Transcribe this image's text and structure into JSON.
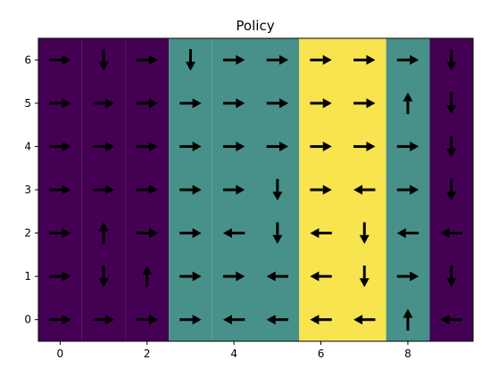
{
  "chart_data": {
    "type": "heatmap",
    "title": "Policy",
    "xlabel": "",
    "ylabel": "",
    "xlim": [
      -0.5,
      9.5
    ],
    "ylim": [
      -0.5,
      6.5
    ],
    "x_ticks": [
      0,
      2,
      4,
      6,
      8
    ],
    "y_ticks": [
      0,
      1,
      2,
      3,
      4,
      5,
      6
    ],
    "grid": false,
    "colormap": "viridis",
    "column_values": [
      0,
      0,
      0,
      1,
      1,
      1,
      2,
      2,
      1,
      0
    ],
    "colors": {
      "0": "#440154",
      "1": "#47918a",
      "2": "#f8e44f"
    },
    "arrows": [
      {
        "x": 0,
        "y": 6,
        "dir": "right"
      },
      {
        "x": 1,
        "y": 6,
        "dir": "down"
      },
      {
        "x": 2,
        "y": 6,
        "dir": "right"
      },
      {
        "x": 3,
        "y": 6,
        "dir": "down"
      },
      {
        "x": 4,
        "y": 6,
        "dir": "right"
      },
      {
        "x": 5,
        "y": 6,
        "dir": "right"
      },
      {
        "x": 6,
        "y": 6,
        "dir": "right"
      },
      {
        "x": 7,
        "y": 6,
        "dir": "right"
      },
      {
        "x": 8,
        "y": 6,
        "dir": "right"
      },
      {
        "x": 9,
        "y": 6,
        "dir": "down"
      },
      {
        "x": 0,
        "y": 5,
        "dir": "right"
      },
      {
        "x": 1,
        "y": 5,
        "dir": "right"
      },
      {
        "x": 2,
        "y": 5,
        "dir": "right"
      },
      {
        "x": 3,
        "y": 5,
        "dir": "right"
      },
      {
        "x": 4,
        "y": 5,
        "dir": "right"
      },
      {
        "x": 5,
        "y": 5,
        "dir": "right"
      },
      {
        "x": 6,
        "y": 5,
        "dir": "right"
      },
      {
        "x": 7,
        "y": 5,
        "dir": "right"
      },
      {
        "x": 8,
        "y": 5,
        "dir": "up"
      },
      {
        "x": 9,
        "y": 5,
        "dir": "down"
      },
      {
        "x": 0,
        "y": 4,
        "dir": "right"
      },
      {
        "x": 1,
        "y": 4,
        "dir": "right"
      },
      {
        "x": 2,
        "y": 4,
        "dir": "right"
      },
      {
        "x": 3,
        "y": 4,
        "dir": "right"
      },
      {
        "x": 4,
        "y": 4,
        "dir": "right"
      },
      {
        "x": 5,
        "y": 4,
        "dir": "right"
      },
      {
        "x": 6,
        "y": 4,
        "dir": "right"
      },
      {
        "x": 7,
        "y": 4,
        "dir": "right"
      },
      {
        "x": 8,
        "y": 4,
        "dir": "right"
      },
      {
        "x": 9,
        "y": 4,
        "dir": "down"
      },
      {
        "x": 0,
        "y": 3,
        "dir": "right"
      },
      {
        "x": 1,
        "y": 3,
        "dir": "right"
      },
      {
        "x": 2,
        "y": 3,
        "dir": "right"
      },
      {
        "x": 3,
        "y": 3,
        "dir": "right"
      },
      {
        "x": 4,
        "y": 3,
        "dir": "right"
      },
      {
        "x": 5,
        "y": 3,
        "dir": "down"
      },
      {
        "x": 6,
        "y": 3,
        "dir": "right"
      },
      {
        "x": 7,
        "y": 3,
        "dir": "left"
      },
      {
        "x": 8,
        "y": 3,
        "dir": "right"
      },
      {
        "x": 9,
        "y": 3,
        "dir": "down"
      },
      {
        "x": 0,
        "y": 2,
        "dir": "right"
      },
      {
        "x": 1,
        "y": 2,
        "dir": "up"
      },
      {
        "x": 2,
        "y": 2,
        "dir": "right"
      },
      {
        "x": 3,
        "y": 2,
        "dir": "right"
      },
      {
        "x": 4,
        "y": 2,
        "dir": "left"
      },
      {
        "x": 5,
        "y": 2,
        "dir": "down"
      },
      {
        "x": 6,
        "y": 2,
        "dir": "left"
      },
      {
        "x": 7,
        "y": 2,
        "dir": "down"
      },
      {
        "x": 8,
        "y": 2,
        "dir": "left"
      },
      {
        "x": 9,
        "y": 2,
        "dir": "left"
      },
      {
        "x": 0,
        "y": 1,
        "dir": "right"
      },
      {
        "x": 1,
        "y": 1,
        "dir": "down"
      },
      {
        "x": 2,
        "y": 1,
        "dir": "up"
      },
      {
        "x": 3,
        "y": 1,
        "dir": "right"
      },
      {
        "x": 4,
        "y": 1,
        "dir": "right"
      },
      {
        "x": 5,
        "y": 1,
        "dir": "left"
      },
      {
        "x": 6,
        "y": 1,
        "dir": "left"
      },
      {
        "x": 7,
        "y": 1,
        "dir": "down"
      },
      {
        "x": 8,
        "y": 1,
        "dir": "right"
      },
      {
        "x": 9,
        "y": 1,
        "dir": "down"
      },
      {
        "x": 0,
        "y": 0,
        "dir": "right"
      },
      {
        "x": 1,
        "y": 0,
        "dir": "right"
      },
      {
        "x": 2,
        "y": 0,
        "dir": "right"
      },
      {
        "x": 3,
        "y": 0,
        "dir": "right"
      },
      {
        "x": 4,
        "y": 0,
        "dir": "left"
      },
      {
        "x": 5,
        "y": 0,
        "dir": "left"
      },
      {
        "x": 6,
        "y": 0,
        "dir": "left"
      },
      {
        "x": 7,
        "y": 0,
        "dir": "left"
      },
      {
        "x": 8,
        "y": 0,
        "dir": "up"
      },
      {
        "x": 9,
        "y": 0,
        "dir": "left"
      }
    ]
  }
}
